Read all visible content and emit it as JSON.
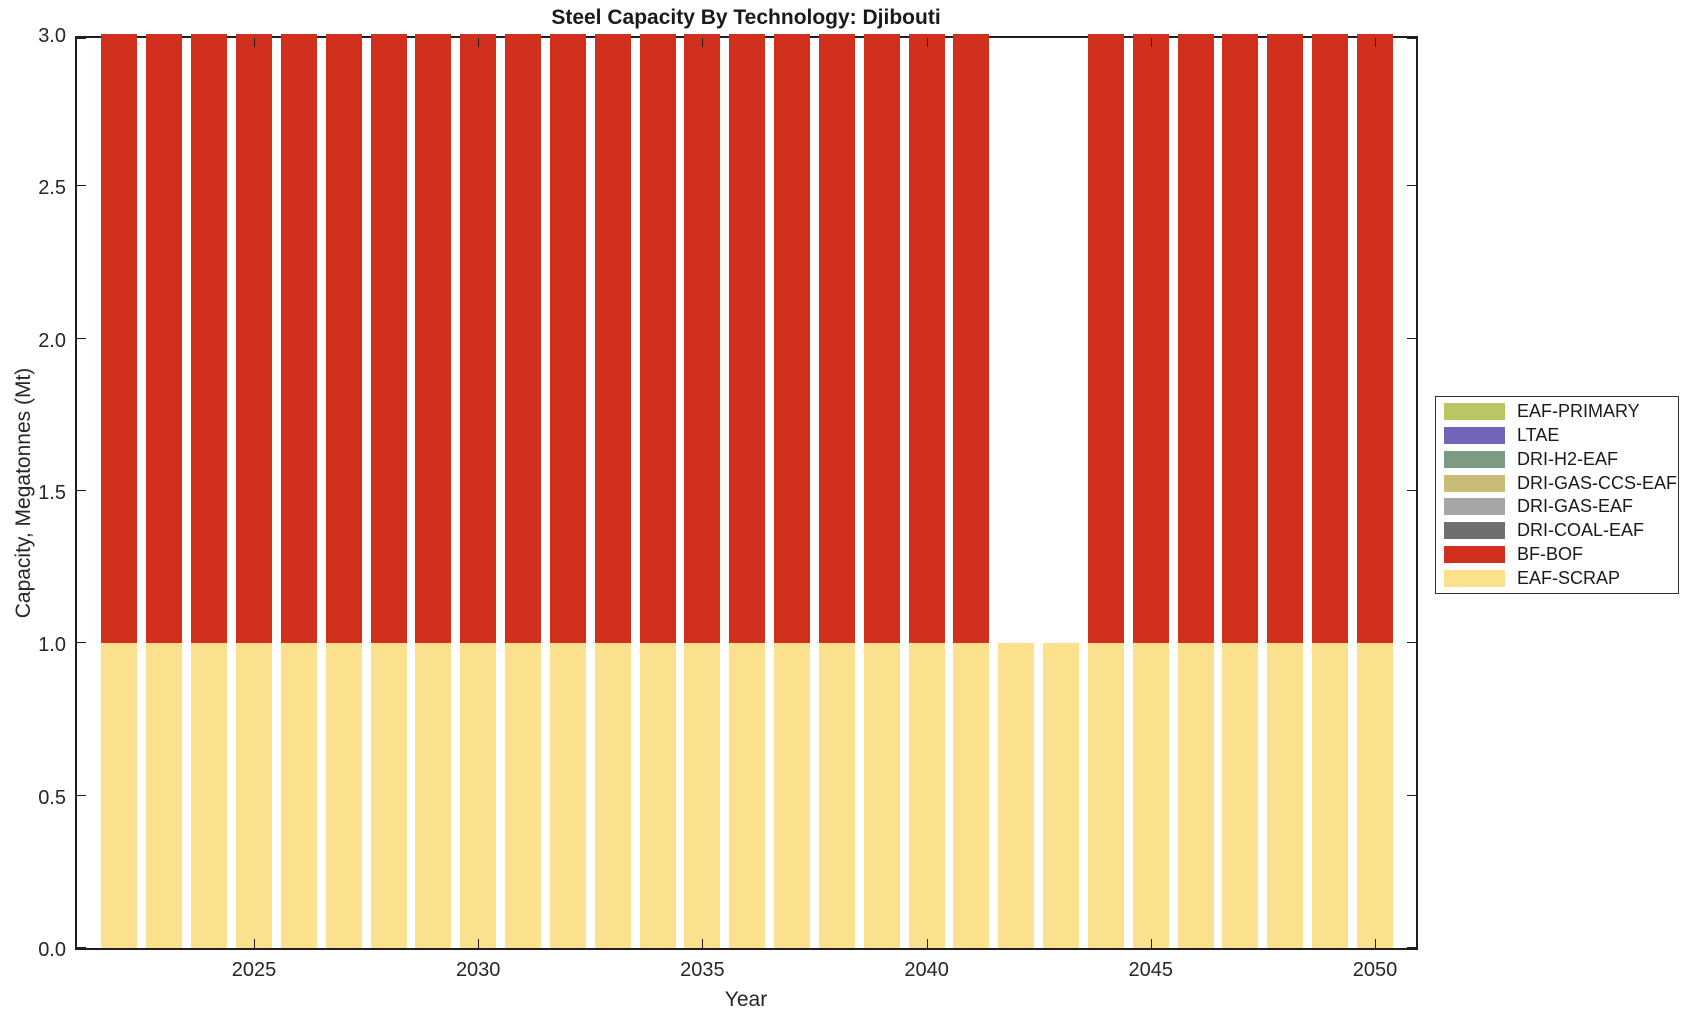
{
  "figure": {
    "background": "#ffffff",
    "axis_color": "#1f1f1f",
    "tick_label_color": "#262626"
  },
  "chart_data": {
    "type": "bar",
    "stacked": true,
    "title": "Steel Capacity By Technology: Djibouti",
    "xlabel": "Year",
    "ylabel": "Capacity, Megatonnes (Mt)",
    "ylim": [
      0,
      3
    ],
    "grid": false,
    "legend_position": "outside-right",
    "x": [
      2022,
      2023,
      2024,
      2025,
      2026,
      2027,
      2028,
      2029,
      2030,
      2031,
      2032,
      2033,
      2034,
      2035,
      2036,
      2037,
      2038,
      2039,
      2040,
      2041,
      2042,
      2043,
      2044,
      2045,
      2046,
      2047,
      2048,
      2049,
      2050
    ],
    "xticks": [
      "2025",
      "2030",
      "2035",
      "2040",
      "2045",
      "2050"
    ],
    "yticks": [
      "0.0",
      "0.5",
      "1.0",
      "1.5",
      "2.0",
      "2.5",
      "3.0"
    ],
    "series": [
      {
        "name": "EAF-PRIMARY",
        "color": "#bac566",
        "values": [
          0,
          0,
          0,
          0,
          0,
          0,
          0,
          0,
          0,
          0,
          0,
          0,
          0,
          0,
          0,
          0,
          0,
          0,
          0,
          0,
          0,
          0,
          0,
          0,
          0,
          0,
          0,
          0,
          0
        ]
      },
      {
        "name": "LTAE",
        "color": "#7165ba",
        "values": [
          0,
          0,
          0,
          0,
          0,
          0,
          0,
          0,
          0,
          0,
          0,
          0,
          0,
          0,
          0,
          0,
          0,
          0,
          0,
          0,
          0,
          0,
          0,
          0,
          0,
          0,
          0,
          0,
          0
        ]
      },
      {
        "name": "DRI-H2-EAF",
        "color": "#7d9a82",
        "values": [
          0,
          0,
          0,
          0,
          0,
          0,
          0,
          0,
          0,
          0,
          0,
          0,
          0,
          0,
          0,
          0,
          0,
          0,
          0,
          0,
          0,
          0,
          0,
          0,
          0,
          0,
          0,
          0,
          0
        ]
      },
      {
        "name": "DRI-GAS-CCS-EAF",
        "color": "#c8bc76",
        "values": [
          0,
          0,
          0,
          0,
          0,
          0,
          0,
          0,
          0,
          0,
          0,
          0,
          0,
          0,
          0,
          0,
          0,
          0,
          0,
          0,
          0,
          0,
          0,
          0,
          0,
          0,
          0,
          0,
          0
        ]
      },
      {
        "name": "DRI-GAS-EAF",
        "color": "#a6a6a6",
        "values": [
          0,
          0,
          0,
          0,
          0,
          0,
          0,
          0,
          0,
          0,
          0,
          0,
          0,
          0,
          0,
          0,
          0,
          0,
          0,
          0,
          0,
          0,
          0,
          0,
          0,
          0,
          0,
          0,
          0
        ]
      },
      {
        "name": "DRI-COAL-EAF",
        "color": "#6f6f6f",
        "values": [
          0,
          0,
          0,
          0,
          0,
          0,
          0,
          0,
          0,
          0,
          0,
          0,
          0,
          0,
          0,
          0,
          0,
          0,
          0,
          0,
          0,
          0,
          0,
          0,
          0,
          0,
          0,
          0,
          0
        ]
      },
      {
        "name": "BF-BOF",
        "color": "#d2301f",
        "values": [
          2,
          2,
          2,
          2,
          2,
          2,
          2,
          2,
          2,
          2,
          2,
          2,
          2,
          2,
          2,
          2,
          2,
          2,
          2,
          2,
          0,
          0,
          2,
          2,
          2,
          2,
          2,
          2,
          2
        ]
      },
      {
        "name": "EAF-SCRAP",
        "color": "#fbe18d",
        "values": [
          1,
          1,
          1,
          1,
          1,
          1,
          1,
          1,
          1,
          1,
          1,
          1,
          1,
          1,
          1,
          1,
          1,
          1,
          1,
          1,
          1,
          1,
          1,
          1,
          1,
          1,
          1,
          1,
          1
        ]
      }
    ]
  }
}
